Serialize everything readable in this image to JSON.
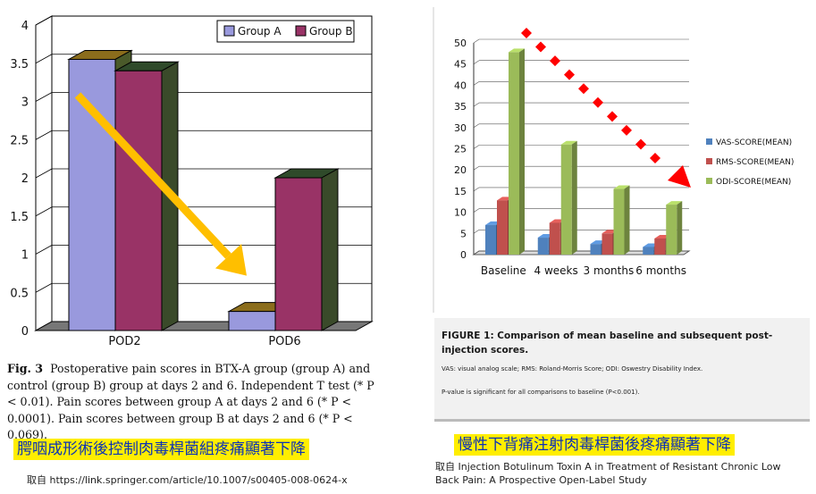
{
  "left": {
    "caption_fig": "Fig. 3",
    "caption_text": "Postoperative pain scores in BTX-A group (group A) and control (group B) group at days 2 and 6. Independent T test (* P < 0.01). Pain scores between group A at days 2 and 6 (* P < 0.0001). Pain scores between group B at days 2 and 6 (* P < 0.069).",
    "banner": "腭咽成形術後控制肉毒桿菌組疼痛顯著下降",
    "source": "取自 https://link.springer.com/article/10.1007/s00405-008-0624-x"
  },
  "right": {
    "fig_title": "FIGURE 1: Comparison of mean baseline and subsequent post-injection scores.",
    "fig_note1": "VAS: visual analog scale; RMS: Roland-Morris Score; ODI: Oswestry Disability Index.",
    "fig_note2": "P-value is significant for all comparisons to baseline (P<0.001).",
    "banner": "慢性下背痛注射肉毒桿菌後疼痛顯著下降",
    "source_line1": "取自 Injection Botulinum Toxin A in Treatment of Resistant Chronic Low",
    "source_line2": "Back Pain: A Prospective Open-Label Study"
  },
  "colors": {
    "groupA": "#9999dd",
    "groupB": "#993366",
    "vas": "#4f81bd",
    "rms": "#c0504d",
    "odi": "#9bbb59",
    "arrow_left": "#ffbf00",
    "arrow_right": "#ff0000"
  },
  "chart_data": [
    {
      "type": "bar",
      "categories": [
        "POD2",
        "POD6"
      ],
      "series": [
        {
          "name": "Group A",
          "values": [
            3.55,
            0.25
          ]
        },
        {
          "name": "Group B",
          "values": [
            3.4,
            2.0
          ]
        }
      ],
      "ylim": [
        0,
        4
      ],
      "yticks": [
        "0",
        "0.5",
        "1",
        "1.5",
        "2",
        "2.5",
        "3",
        "3.5",
        "4"
      ],
      "grid": true,
      "legend": "top-right",
      "annotation": "arrow from Group A POD2 down to Group A POD6"
    },
    {
      "type": "bar",
      "categories": [
        "Baseline",
        "4 weeks",
        "3 months",
        "6 months"
      ],
      "series": [
        {
          "name": "VAS-SCORE(MEAN)",
          "values": [
            7,
            4,
            2.5,
            1.8
          ]
        },
        {
          "name": "RMS-SCORE(MEAN)",
          "values": [
            12.8,
            7.5,
            5,
            3.8
          ]
        },
        {
          "name": "ODI-SCORE(MEAN)",
          "values": [
            47.8,
            26,
            15.5,
            11.8
          ]
        }
      ],
      "ylim": [
        0,
        50
      ],
      "yticks": [
        "0",
        "5",
        "10",
        "15",
        "20",
        "25",
        "30",
        "35",
        "40",
        "45",
        "50"
      ],
      "grid": true,
      "legend": "right",
      "annotation": "dashed diamond arrow descending from baseline to 6 months"
    }
  ]
}
